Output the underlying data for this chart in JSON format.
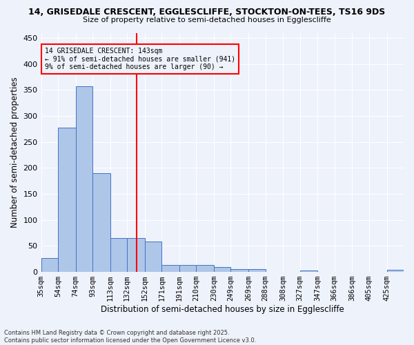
{
  "title1": "14, GRISEDALE CRESCENT, EGGLESCLIFFE, STOCKTON-ON-TEES, TS16 9DS",
  "title2": "Size of property relative to semi-detached houses in Egglescliffe",
  "xlabel": "Distribution of semi-detached houses by size in Egglescliffe",
  "ylabel": "Number of semi-detached properties",
  "bin_labels": [
    "35sqm",
    "54sqm",
    "74sqm",
    "93sqm",
    "113sqm",
    "132sqm",
    "152sqm",
    "171sqm",
    "191sqm",
    "210sqm",
    "230sqm",
    "249sqm",
    "269sqm",
    "288sqm",
    "308sqm",
    "327sqm",
    "347sqm",
    "366sqm",
    "386sqm",
    "405sqm",
    "425sqm"
  ],
  "bar_values": [
    26,
    278,
    357,
    190,
    65,
    65,
    58,
    14,
    14,
    14,
    10,
    5,
    5,
    0,
    0,
    3,
    0,
    0,
    0,
    0,
    4
  ],
  "bar_color": "#aec6e8",
  "bar_edge_color": "#4472c4",
  "vline_color": "red",
  "annotation_title": "14 GRISEDALE CRESCENT: 143sqm",
  "annotation_line1": "← 91% of semi-detached houses are smaller (941)",
  "annotation_line2": "9% of semi-detached houses are larger (90) →",
  "annotation_box_color": "red",
  "ylim": [
    0,
    460
  ],
  "yticks": [
    0,
    50,
    100,
    150,
    200,
    250,
    300,
    350,
    400,
    450
  ],
  "bin_edges_sqm": [
    35,
    54,
    74,
    93,
    113,
    132,
    152,
    171,
    191,
    210,
    230,
    249,
    269,
    288,
    308,
    327,
    347,
    366,
    386,
    405,
    425,
    444
  ],
  "property_size_sqm": 143,
  "footer1": "Contains HM Land Registry data © Crown copyright and database right 2025.",
  "footer2": "Contains public sector information licensed under the Open Government Licence v3.0.",
  "bg_color": "#eef2fb",
  "grid_color": "white"
}
